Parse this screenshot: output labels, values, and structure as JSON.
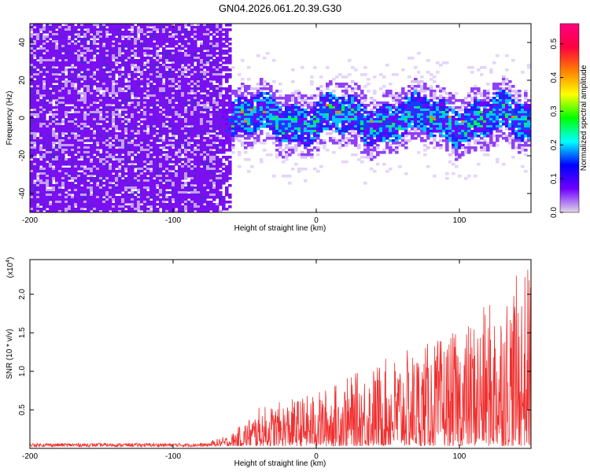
{
  "figure_title": "GN04.2026.061.20.39.G30",
  "chart_data": [
    {
      "type": "heatmap",
      "xlabel": "Height of straight line (km)",
      "ylabel": "Frequency (Hz)",
      "xlim": [
        -200,
        150
      ],
      "ylim": [
        -50,
        50
      ],
      "xticks": [
        -200,
        -100,
        0,
        100
      ],
      "yticks": [
        -40,
        -20,
        0,
        20,
        40
      ],
      "colorbar": {
        "label": "Normalized spectral amplitude",
        "range": [
          0,
          0.56
        ],
        "ticks": [
          0.0,
          0.1,
          0.2,
          0.3,
          0.4,
          0.5
        ],
        "colors": [
          "#e0d8e8",
          "#7000ff",
          "#0000ff",
          "#00ffff",
          "#00ff00",
          "#ffff00",
          "#ff8000",
          "#ff0040",
          "#ff0080"
        ]
      },
      "noise_region_x": [
        -200,
        -60
      ],
      "signal_band_center_hz": 0,
      "signal_band_halfwidth_hz": 12
    },
    {
      "type": "line",
      "xlabel": "Height of straight line (km)",
      "ylabel": "SNR (10 * v/v)",
      "yscale_label": "(x10",
      "yscale_exp": "4",
      "yscale_close": ")",
      "xlim": [
        -200,
        150
      ],
      "ylim": [
        0,
        2.45
      ],
      "xticks": [
        -200,
        -100,
        0,
        100
      ],
      "yticks": [
        0.5,
        1.0,
        1.5,
        2.0
      ],
      "ytick_labels": [
        "0.5",
        "1.0",
        "1.5",
        "2.0"
      ],
      "color": "#f03030",
      "envelope": [
        {
          "x": -200,
          "y": 0.06
        },
        {
          "x": -75,
          "y": 0.06
        },
        {
          "x": -60,
          "y": 0.15
        },
        {
          "x": -40,
          "y": 0.5
        },
        {
          "x": 0,
          "y": 0.7
        },
        {
          "x": 50,
          "y": 1.15
        },
        {
          "x": 100,
          "y": 1.5
        },
        {
          "x": 150,
          "y": 2.4
        }
      ]
    }
  ]
}
